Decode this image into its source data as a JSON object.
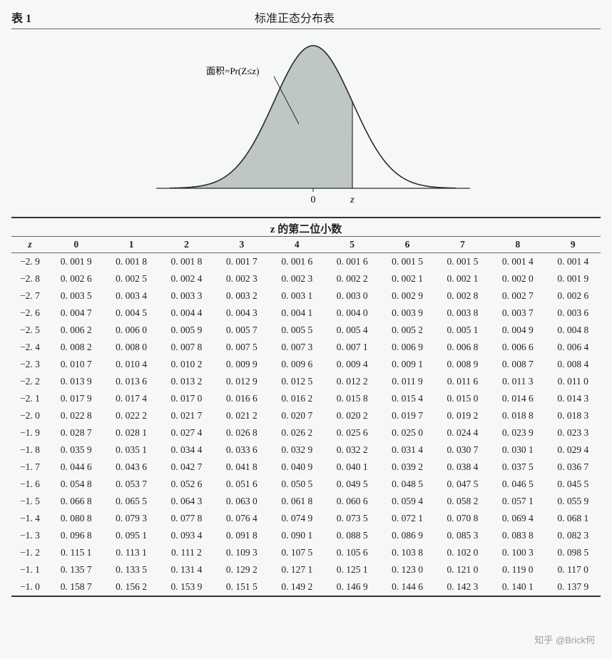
{
  "header": {
    "table_label": "表 1",
    "title": "标准正态分布表"
  },
  "diagram": {
    "annotation": "面积=Pr(Z≤z)",
    "axis_zero": "0",
    "axis_z": "z",
    "curve_stroke": "#2a2a2a",
    "curve_fill": "#bfc6c6",
    "axis_stroke": "#2a2a2a",
    "background": "#f6f8f8",
    "line_width": 1.6
  },
  "table": {
    "second_decimal_header": "z 的第二位小数",
    "z_header": "z",
    "columns": [
      "0",
      "1",
      "2",
      "3",
      "4",
      "5",
      "6",
      "7",
      "8",
      "9"
    ],
    "z_labels": [
      "−2. 9",
      "−2. 8",
      "−2. 7",
      "−2. 6",
      "−2. 5",
      "−2. 4",
      "−2. 3",
      "−2. 2",
      "−2. 1",
      "−2. 0",
      "−1. 9",
      "−1. 8",
      "−1. 7",
      "−1. 6",
      "−1. 5",
      "−1. 4",
      "−1. 3",
      "−1. 2",
      "−1. 1",
      "−1. 0"
    ],
    "rows": [
      [
        "0. 001 9",
        "0. 001 8",
        "0. 001 8",
        "0. 001 7",
        "0. 001 6",
        "0. 001 6",
        "0. 001 5",
        "0. 001 5",
        "0. 001 4",
        "0. 001 4"
      ],
      [
        "0. 002 6",
        "0. 002 5",
        "0. 002 4",
        "0. 002 3",
        "0. 002 3",
        "0. 002 2",
        "0. 002 1",
        "0. 002 1",
        "0. 002 0",
        "0. 001 9"
      ],
      [
        "0. 003 5",
        "0. 003 4",
        "0. 003 3",
        "0. 003 2",
        "0. 003 1",
        "0. 003 0",
        "0. 002 9",
        "0. 002 8",
        "0. 002 7",
        "0. 002 6"
      ],
      [
        "0. 004 7",
        "0. 004 5",
        "0. 004 4",
        "0. 004 3",
        "0. 004 1",
        "0. 004 0",
        "0. 003 9",
        "0. 003 8",
        "0. 003 7",
        "0. 003 6"
      ],
      [
        "0. 006 2",
        "0. 006 0",
        "0. 005 9",
        "0. 005 7",
        "0. 005 5",
        "0. 005 4",
        "0. 005 2",
        "0. 005 1",
        "0. 004 9",
        "0. 004 8"
      ],
      [
        "0. 008 2",
        "0. 008 0",
        "0. 007 8",
        "0. 007 5",
        "0. 007 3",
        "0. 007 1",
        "0. 006 9",
        "0. 006 8",
        "0. 006 6",
        "0. 006 4"
      ],
      [
        "0. 010 7",
        "0. 010 4",
        "0. 010 2",
        "0. 009 9",
        "0. 009 6",
        "0. 009 4",
        "0. 009 1",
        "0. 008 9",
        "0. 008 7",
        "0. 008 4"
      ],
      [
        "0. 013 9",
        "0. 013 6",
        "0. 013 2",
        "0. 012 9",
        "0. 012 5",
        "0. 012 2",
        "0. 011 9",
        "0. 011 6",
        "0. 011 3",
        "0. 011 0"
      ],
      [
        "0. 017 9",
        "0. 017 4",
        "0. 017 0",
        "0. 016 6",
        "0. 016 2",
        "0. 015 8",
        "0. 015 4",
        "0. 015 0",
        "0. 014 6",
        "0. 014 3"
      ],
      [
        "0. 022 8",
        "0. 022 2",
        "0. 021 7",
        "0. 021 2",
        "0. 020 7",
        "0. 020 2",
        "0. 019 7",
        "0. 019 2",
        "0. 018 8",
        "0. 018 3"
      ],
      [
        "0. 028 7",
        "0. 028 1",
        "0. 027 4",
        "0. 026 8",
        "0. 026 2",
        "0. 025 6",
        "0. 025 0",
        "0. 024 4",
        "0. 023 9",
        "0. 023 3"
      ],
      [
        "0. 035 9",
        "0. 035 1",
        "0. 034 4",
        "0. 033 6",
        "0. 032 9",
        "0. 032 2",
        "0. 031 4",
        "0. 030 7",
        "0. 030 1",
        "0. 029 4"
      ],
      [
        "0. 044 6",
        "0. 043 6",
        "0. 042 7",
        "0. 041 8",
        "0. 040 9",
        "0. 040 1",
        "0. 039 2",
        "0. 038 4",
        "0. 037 5",
        "0. 036 7"
      ],
      [
        "0. 054 8",
        "0. 053 7",
        "0. 052 6",
        "0. 051 6",
        "0. 050 5",
        "0. 049 5",
        "0. 048 5",
        "0. 047 5",
        "0. 046 5",
        "0. 045 5"
      ],
      [
        "0. 066 8",
        "0. 065 5",
        "0. 064 3",
        "0. 063 0",
        "0. 061 8",
        "0. 060 6",
        "0. 059 4",
        "0. 058 2",
        "0. 057 1",
        "0. 055 9"
      ],
      [
        "0. 080 8",
        "0. 079 3",
        "0. 077 8",
        "0. 076 4",
        "0. 074 9",
        "0. 073 5",
        "0. 072 1",
        "0. 070 8",
        "0. 069 4",
        "0. 068 1"
      ],
      [
        "0. 096 8",
        "0. 095 1",
        "0. 093 4",
        "0. 091 8",
        "0. 090 1",
        "0. 088 5",
        "0. 086 9",
        "0. 085 3",
        "0. 083 8",
        "0. 082 3"
      ],
      [
        "0. 115 1",
        "0. 113 1",
        "0. 111 2",
        "0. 109 3",
        "0. 107 5",
        "0. 105 6",
        "0. 103 8",
        "0. 102 0",
        "0. 100 3",
        "0. 098 5"
      ],
      [
        "0. 135 7",
        "0. 133 5",
        "0. 131 4",
        "0. 129 2",
        "0. 127 1",
        "0. 125 1",
        "0. 123 0",
        "0. 121 0",
        "0. 119 0",
        "0. 117 0"
      ],
      [
        "0. 158 7",
        "0. 156 2",
        "0. 153 9",
        "0. 151 5",
        "0. 149 2",
        "0. 146 9",
        "0. 144 6",
        "0. 142 3",
        "0. 140 1",
        "0. 137 9"
      ]
    ]
  },
  "watermark": "知乎 @Brick何"
}
